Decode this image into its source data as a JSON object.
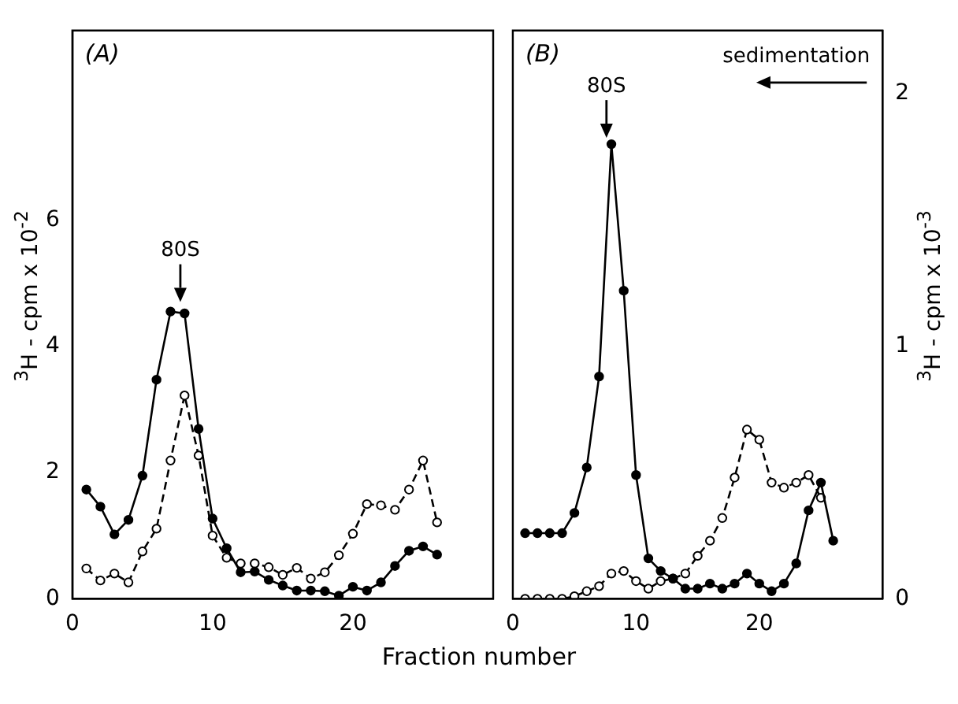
{
  "chart_data": [
    {
      "type": "line",
      "xlabel": "Fraction number",
      "ylabel": "$^{3}$H - cpm x 10$^{-2}$",
      "xlim": [
        0,
        30
      ],
      "xticks": [
        0,
        10,
        20
      ],
      "ylim": [
        0,
        9
      ],
      "yticks": [
        0,
        2,
        4,
        6
      ],
      "grid": false,
      "legend": false,
      "annotations": [
        "(A)",
        {
          "text": "80S",
          "x": 7.7,
          "y": 4.6
        }
      ],
      "x": [
        1,
        2,
        3,
        4,
        5,
        6,
        7,
        8,
        9,
        10,
        11,
        12,
        13,
        14,
        15,
        16,
        17,
        18,
        19,
        20,
        21,
        22,
        23,
        24,
        25,
        26
      ],
      "series": [
        {
          "color": "#000000",
          "marker": "circle",
          "line_style": "solid",
          "values": [
            1.73,
            1.46,
            1.02,
            1.25,
            1.95,
            3.47,
            4.55,
            4.52,
            2.69,
            1.27,
            0.8,
            0.42,
            0.43,
            0.3,
            0.21,
            0.13,
            0.13,
            0.12,
            0.05,
            0.19,
            0.13,
            0.26,
            0.52,
            0.76,
            0.83,
            0.7
          ]
        },
        {
          "color": "#000000",
          "marker": "circle",
          "line_style": "dashed",
          "values": [
            0.48,
            0.29,
            0.4,
            0.26,
            0.75,
            1.11,
            2.19,
            3.22,
            2.27,
            1.0,
            0.65,
            0.56,
            0.56,
            0.5,
            0.38,
            0.49,
            0.32,
            0.42,
            0.69,
            1.03,
            1.5,
            1.48,
            1.41,
            1.73,
            2.19,
            1.21
          ]
        }
      ]
    },
    {
      "type": "line",
      "ylabel": "$^{3}$H - cpm x 10$^{-3}$",
      "xlim": [
        0,
        30
      ],
      "xticks": [
        0,
        10,
        20
      ],
      "ylim": [
        0,
        2.25
      ],
      "yticks": [
        0,
        1,
        2
      ],
      "grid": false,
      "legend": false,
      "annotations": [
        "(B)",
        "sedimentation",
        {
          "text": "80S",
          "x": 7.6,
          "y": 1.8
        }
      ],
      "x": [
        1,
        2,
        3,
        4,
        5,
        6,
        7,
        8,
        9,
        10,
        11,
        12,
        13,
        14,
        15,
        16,
        17,
        18,
        19,
        20,
        21,
        22,
        23,
        24,
        25,
        26
      ],
      "series": [
        {
          "color": "#000000",
          "marker": "circle",
          "line_style": "solid",
          "values": [
            0.26,
            0.26,
            0.26,
            0.26,
            0.34,
            0.52,
            0.88,
            1.8,
            1.22,
            0.49,
            0.16,
            0.11,
            0.08,
            0.04,
            0.04,
            0.06,
            0.04,
            0.06,
            0.1,
            0.06,
            0.03,
            0.06,
            0.14,
            0.35,
            0.46,
            0.23
          ]
        },
        {
          "color": "#000000",
          "marker": "circle",
          "line_style": "dashed",
          "values": [
            0,
            0,
            0,
            0,
            0.01,
            0.03,
            0.05,
            0.1,
            0.11,
            0.07,
            0.04,
            0.07,
            0.08,
            0.1,
            0.17,
            0.23,
            0.32,
            0.48,
            0.67,
            0.63,
            0.46,
            0.44,
            0.46,
            0.49,
            0.4,
            null
          ]
        }
      ]
    }
  ]
}
